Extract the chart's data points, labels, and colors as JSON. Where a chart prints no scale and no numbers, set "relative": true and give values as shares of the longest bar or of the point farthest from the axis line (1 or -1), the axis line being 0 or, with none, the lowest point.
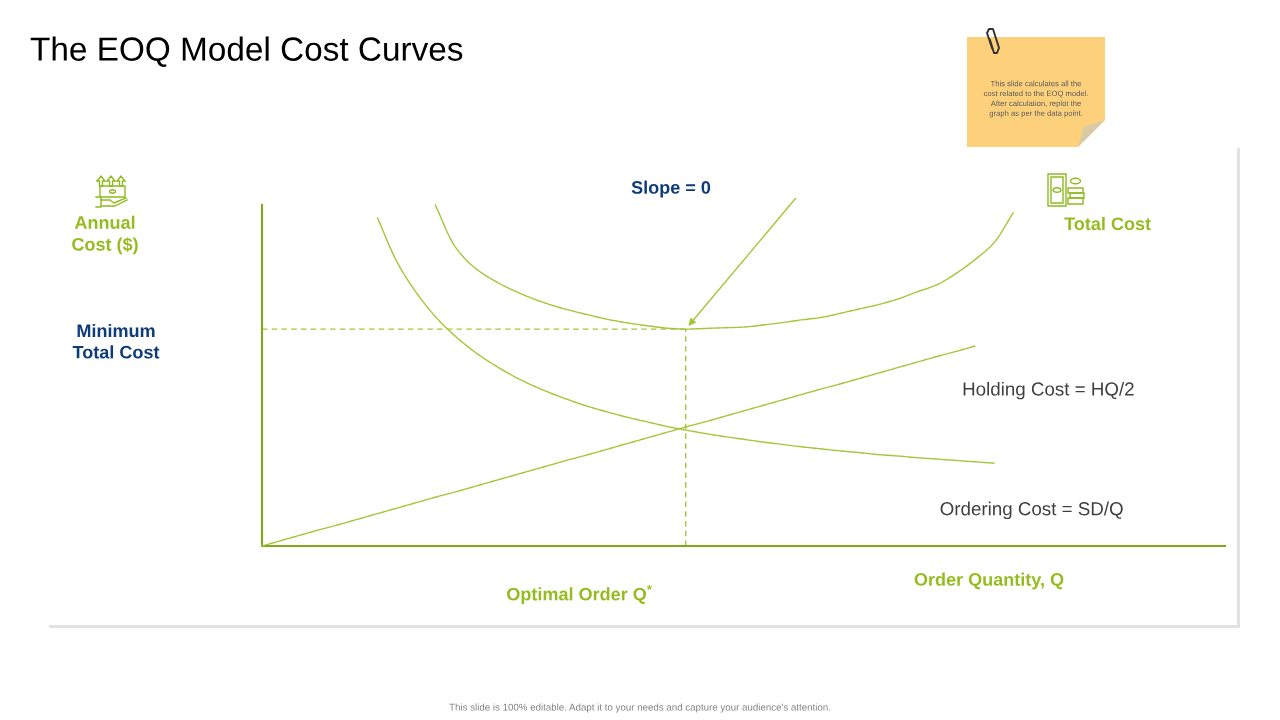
{
  "chart_data": {
    "type": "line",
    "title": "The EOQ Model Cost Curves",
    "xlabel": "Order Quantity, Q",
    "relative": true,
    "categories": [
      null,
      null,
      null,
      null,
      null,
      null,
      null,
      null,
      null,
      null,
      null,
      null,
      null,
      null,
      null,
      null,
      null,
      null,
      null,
      null,
      null,
      null,
      null,
      null,
      null,
      null,
      null,
      null,
      null,
      null,
      null,
      null,
      null,
      null,
      null,
      null,
      null,
      null,
      null,
      null,
      null,
      null,
      null,
      null,
      null,
      null,
      null,
      null,
      null,
      null,
      null
    ],
    "series": [
      {
        "name": "Total Cost",
        "color": "#a4c639",
        "values": [
          null,
          null,
          null,
          null,
          null,
          null,
          null,
          null,
          null,
          1.0,
          0.88,
          0.818,
          0.78,
          0.751,
          0.727,
          0.707,
          0.691,
          0.677,
          0.664,
          0.654,
          0.646,
          0.639,
          0.636,
          0.638,
          0.64,
          0.642,
          0.648,
          0.655,
          0.663,
          0.67,
          0.682,
          0.695,
          0.708,
          0.724,
          0.745,
          0.765,
          0.798,
          0.839,
          0.889,
          0.977,
          null,
          null,
          null,
          null,
          null,
          null,
          null,
          null,
          null,
          null,
          null
        ]
      },
      {
        "name": "Holding Cost = HQ/2",
        "color": "#a4c639",
        "values": [
          0,
          0.016,
          0.032,
          0.048,
          0.063,
          0.079,
          0.095,
          0.111,
          0.127,
          0.143,
          0.158,
          0.174,
          0.19,
          0.206,
          0.222,
          0.238,
          0.254,
          0.269,
          0.285,
          0.301,
          0.317,
          0.333,
          0.349,
          0.364,
          0.38,
          0.396,
          0.412,
          0.428,
          0.444,
          0.46,
          0.475,
          0.491,
          0.507,
          0.523,
          0.539,
          0.555,
          0.57,
          0.586,
          null,
          null,
          null,
          null,
          null,
          null,
          null,
          null,
          null,
          null,
          null,
          null,
          null
        ]
      },
      {
        "name": "Ordering Cost = SD/Q",
        "color": "#a4c639",
        "values": [
          null,
          null,
          null,
          null,
          null,
          null,
          0.962,
          0.834,
          0.744,
          0.673,
          0.617,
          0.571,
          0.533,
          0.5,
          0.472,
          0.448,
          0.427,
          0.408,
          0.392,
          0.377,
          0.364,
          0.351,
          0.34,
          0.33,
          0.321,
          0.313,
          0.305,
          0.298,
          0.291,
          0.285,
          0.279,
          0.274,
          0.268,
          0.264,
          0.259,
          0.255,
          0.251,
          0.247,
          0.243,
          null,
          null,
          null,
          null,
          null,
          null,
          null,
          null,
          null,
          null,
          null,
          null
        ]
      }
    ],
    "ref_lines": [
      {
        "axis": "y",
        "value": 0.636,
        "color": "#a4c639",
        "line_style": "dashed"
      }
    ],
    "annotations": [
      "Slope = 0",
      "Annual\nCost ($)",
      "Minimum\nTotal Cost",
      "Optimal Order Q$^{*}$",
      "This slide calculates all the\ncost related to the EOQ model.\nAfter calculation, replot the\ngraph as per the data point.",
      "This slide is 100% editable. Adapt it to your needs and capture your audience's attention."
    ]
  }
}
